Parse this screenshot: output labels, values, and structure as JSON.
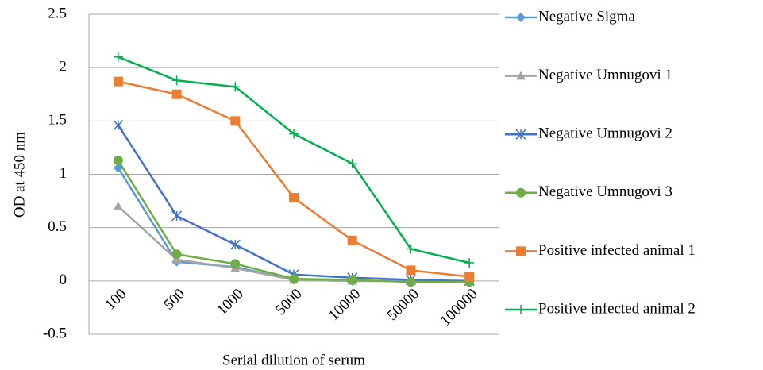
{
  "chart_data": {
    "type": "line",
    "categories": [
      "100",
      "500",
      "1000",
      "5000",
      "10000",
      "50000",
      "100000"
    ],
    "series": [
      {
        "name": "Negative Sigma",
        "color": "#5b9bd5",
        "marker": "diamond",
        "values": [
          1.06,
          0.18,
          0.13,
          0.01,
          0.0,
          0.0,
          0.0
        ]
      },
      {
        "name": "Negative Umnugovi 1",
        "color": "#a5a5a5",
        "marker": "triangle",
        "values": [
          0.7,
          0.2,
          0.12,
          0.01,
          0.0,
          0.0,
          0.0
        ]
      },
      {
        "name": "Negative Umnugovi 2",
        "color": "#4472c4",
        "marker": "star",
        "values": [
          1.46,
          0.61,
          0.34,
          0.06,
          0.03,
          0.01,
          0.0
        ]
      },
      {
        "name": "Negative Umnugovi 3",
        "color": "#70ad47",
        "marker": "circle",
        "values": [
          1.13,
          0.25,
          0.16,
          0.02,
          0.01,
          -0.01,
          -0.01
        ]
      },
      {
        "name": "Positive infected animal 1",
        "color": "#ed7d31",
        "marker": "square",
        "values": [
          1.87,
          1.75,
          1.5,
          0.78,
          0.38,
          0.1,
          0.04
        ]
      },
      {
        "name": "Positive infected animal 2",
        "color": "#00b050",
        "marker": "plus",
        "values": [
          2.1,
          1.88,
          1.82,
          1.38,
          1.1,
          0.3,
          0.17
        ]
      }
    ],
    "ylim": [
      -0.5,
      2.5
    ],
    "yticks": [
      -0.5,
      0,
      0.5,
      1,
      1.5,
      2,
      2.5
    ],
    "grid": true,
    "y_label": "OD at 450 nm",
    "x_label": "Serial dilution of serum",
    "legend": "right"
  }
}
